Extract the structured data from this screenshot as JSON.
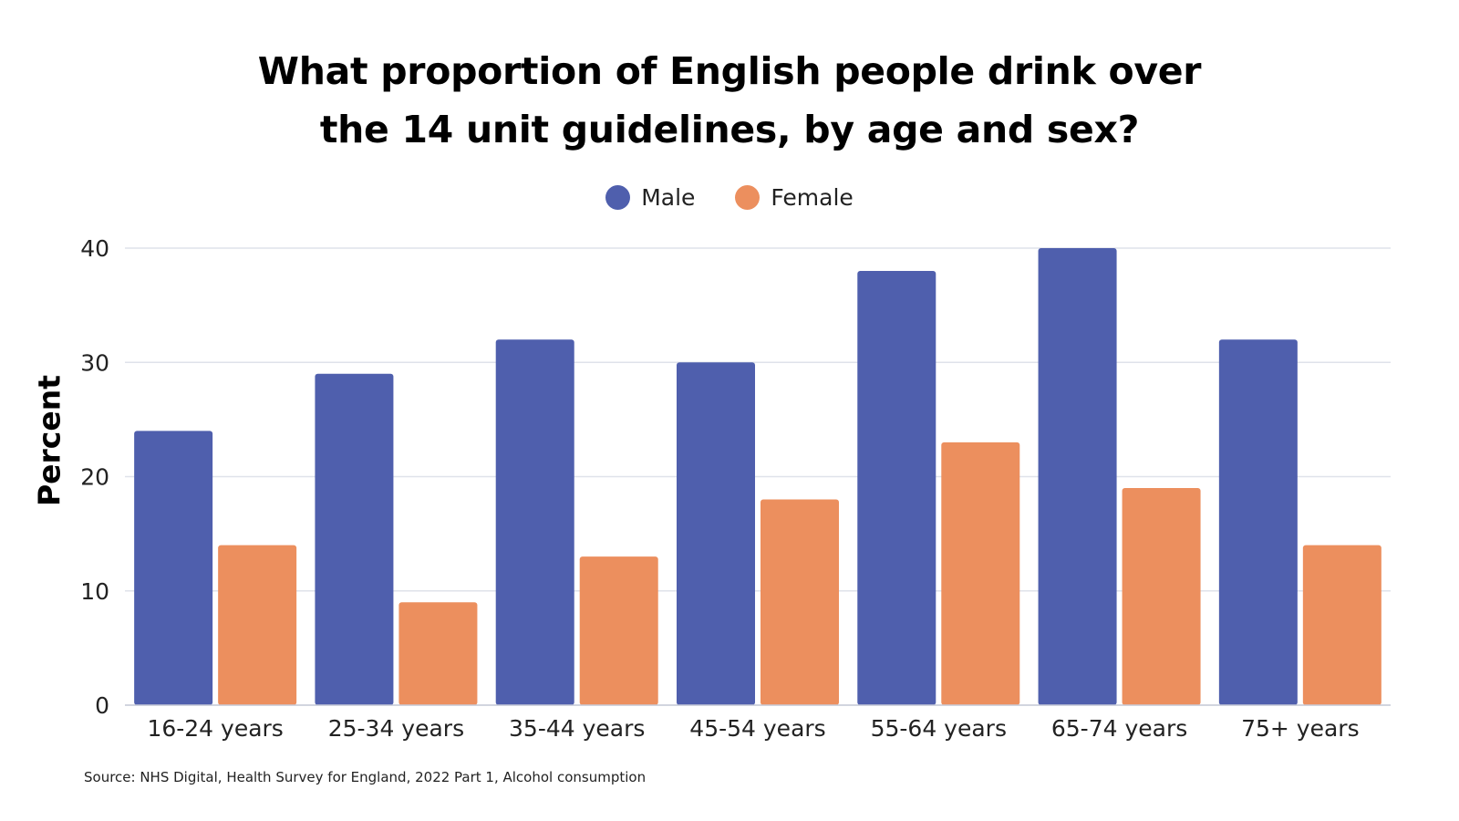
{
  "chart_data": {
    "type": "bar",
    "title_lines": [
      "What proportion of English people drink over",
      "the 14 unit guidelines, by age and sex?"
    ],
    "xlabel": "",
    "ylabel": "Percent",
    "ylim": [
      0,
      40
    ],
    "yticks": [
      0,
      10,
      20,
      30,
      40
    ],
    "grid": true,
    "legend_position": "top-center",
    "categories": [
      "16-24 years",
      "25-34 years",
      "35-44 years",
      "45-54 years",
      "55-64 years",
      "65-74 years",
      "75+ years"
    ],
    "series": [
      {
        "name": "Male",
        "color": "#4f5fad",
        "values": [
          24,
          29,
          32,
          30,
          38,
          40,
          32
        ]
      },
      {
        "name": "Female",
        "color": "#ec8f5e",
        "values": [
          14,
          9,
          13,
          18,
          23,
          19,
          14
        ]
      }
    ]
  },
  "source": "Source: NHS Digital, Health Survey for England, 2022 Part 1, Alcohol consumption"
}
